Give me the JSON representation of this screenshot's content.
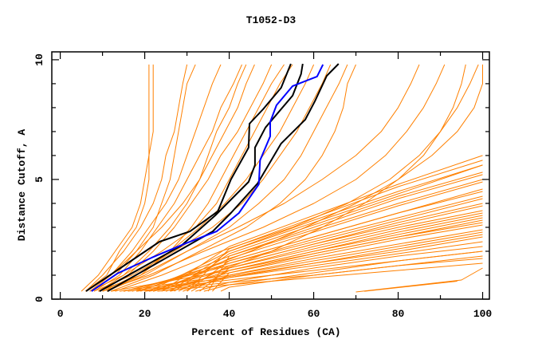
{
  "chart_data": {
    "type": "line",
    "title": "T1052-D3",
    "xlabel": "Percent of Residues (CA)",
    "ylabel": "Distance Cutoff, A",
    "xlim": [
      -2,
      101.6
    ],
    "ylim": [
      0,
      10.33
    ],
    "xticks": [
      0,
      20,
      40,
      60,
      80,
      100
    ],
    "xticks_minor": [
      10,
      30,
      50,
      70,
      90
    ],
    "yticks": [
      0,
      5,
      10
    ],
    "yticks_minor": [
      1,
      2,
      3,
      4,
      6,
      7,
      8,
      9
    ],
    "grid": false,
    "colors": {
      "models": "#ff8000",
      "highlight": "#0000ff",
      "reference": "#000000"
    },
    "orange_upper_y": [
      0.33,
      1,
      2,
      3,
      4,
      5,
      6,
      7,
      8,
      9,
      9.8
    ],
    "orange_upper": [
      [
        5,
        9,
        13,
        17,
        19,
        20,
        21,
        22,
        22,
        22,
        22
      ],
      [
        6,
        10,
        15,
        19,
        22,
        24,
        25,
        27,
        28,
        29,
        30
      ],
      [
        7,
        12,
        17,
        21,
        25,
        28,
        30,
        32,
        34,
        36,
        38
      ],
      [
        8,
        14,
        19,
        23,
        27,
        30,
        33,
        36,
        38,
        41,
        43
      ],
      [
        6,
        12,
        18,
        24,
        29,
        33,
        36,
        39,
        42,
        44,
        46
      ],
      [
        9,
        16,
        22,
        27,
        31,
        35,
        38,
        42,
        45,
        48,
        50
      ],
      [
        7,
        15,
        24,
        32,
        37,
        40,
        43,
        46,
        49,
        52,
        55
      ],
      [
        10,
        18,
        26,
        33,
        39,
        44,
        48,
        52,
        55,
        58,
        60
      ],
      [
        8,
        17,
        27,
        36,
        43,
        48,
        52,
        56,
        59,
        62,
        64
      ],
      [
        11,
        20,
        30,
        40,
        47,
        53,
        57,
        60,
        63,
        66,
        68
      ],
      [
        12,
        22,
        33,
        44,
        52,
        58,
        62,
        65,
        67,
        68,
        70
      ],
      [
        9,
        19,
        30,
        42,
        53,
        62,
        70,
        76,
        80,
        83,
        85
      ],
      [
        10,
        21,
        34,
        48,
        60,
        70,
        77,
        82,
        86,
        89,
        91
      ],
      [
        13,
        24,
        38,
        55,
        68,
        78,
        85,
        90,
        93,
        95,
        96
      ],
      [
        20,
        35,
        50,
        62,
        72,
        80,
        86,
        90,
        94,
        97,
        99
      ],
      [
        15,
        30,
        45,
        58,
        70,
        80,
        88,
        94,
        98,
        100,
        100
      ],
      [
        6,
        11,
        14,
        18,
        20,
        21,
        21,
        21,
        21,
        21,
        21
      ],
      [
        7,
        13,
        18,
        22,
        24,
        26,
        27,
        28,
        29,
        30,
        32
      ],
      [
        9,
        15,
        21,
        26,
        30,
        33,
        35,
        37,
        40,
        42,
        44
      ],
      [
        11,
        19,
        26,
        31,
        35,
        38,
        41,
        44,
        47,
        50,
        53
      ]
    ],
    "orange_lower_x": [
      40,
      60,
      80,
      100
    ],
    "orange_lower": [
      {
        "x0": 12,
        "y": [
          1.2,
          1.9,
          2.6,
          3.2
        ]
      },
      {
        "x0": 14,
        "y": [
          1.0,
          1.6,
          2.2,
          2.8
        ]
      },
      {
        "x0": 15,
        "y": [
          1.4,
          2.3,
          3.2,
          4.0
        ]
      },
      {
        "x0": 16,
        "y": [
          0.9,
          1.4,
          1.9,
          2.4
        ]
      },
      {
        "x0": 17,
        "y": [
          1.6,
          2.6,
          3.6,
          4.5
        ]
      },
      {
        "x0": 18,
        "y": [
          0.8,
          1.2,
          1.6,
          2.0
        ]
      },
      {
        "x0": 19,
        "y": [
          1.8,
          2.9,
          4.0,
          5.0
        ]
      },
      {
        "x0": 20,
        "y": [
          0.7,
          1.0,
          1.4,
          1.7
        ]
      },
      {
        "x0": 20,
        "y": [
          1.3,
          2.1,
          2.9,
          3.6
        ]
      },
      {
        "x0": 21,
        "y": [
          2.0,
          3.2,
          4.4,
          5.6
        ]
      },
      {
        "x0": 22,
        "y": [
          1.1,
          1.8,
          2.5,
          3.1
        ]
      },
      {
        "x0": 22,
        "y": [
          1.5,
          2.5,
          3.4,
          4.3
        ]
      },
      {
        "x0": 23,
        "y": [
          0.6,
          0.9,
          1.2,
          1.5
        ]
      },
      {
        "x0": 24,
        "y": [
          1.7,
          2.8,
          3.9,
          4.9
        ]
      },
      {
        "x0": 24,
        "y": [
          2.2,
          3.5,
          4.8,
          6.0
        ]
      },
      {
        "x0": 25,
        "y": [
          1.2,
          2.0,
          2.7,
          3.4
        ]
      },
      {
        "x0": 26,
        "y": [
          0.9,
          1.5,
          2.0,
          2.6
        ]
      },
      {
        "x0": 27,
        "y": [
          1.9,
          3.1,
          4.3,
          5.3
        ]
      },
      {
        "x0": 28,
        "y": [
          1.4,
          2.3,
          3.1,
          3.9
        ]
      },
      {
        "x0": 29,
        "y": [
          1.0,
          1.7,
          2.3,
          2.9
        ]
      },
      {
        "x0": 30,
        "y": [
          2.1,
          3.4,
          4.7,
          5.8
        ]
      },
      {
        "x0": 30,
        "y": [
          1.6,
          2.6,
          3.6,
          4.6
        ]
      },
      {
        "x0": 32,
        "y": [
          0.7,
          1.3,
          1.8,
          2.2
        ]
      },
      {
        "x0": 33,
        "y": [
          1.3,
          2.2,
          3.0,
          3.7
        ]
      },
      {
        "x0": 35,
        "y": [
          1.8,
          3.0,
          4.2,
          5.2
        ]
      },
      {
        "x0": 36,
        "y": [
          1.1,
          1.9,
          2.6,
          3.3
        ]
      },
      {
        "x0": 38,
        "y": [
          0.5,
          1.0,
          1.4,
          1.8
        ]
      },
      {
        "x0": 18,
        "y": [
          1.5,
          2.4,
          3.3,
          4.2
        ]
      },
      {
        "x0": 21,
        "y": [
          0.95,
          1.5,
          2.1,
          2.7
        ]
      },
      {
        "x0": 26,
        "y": [
          2.0,
          3.3,
          4.5,
          5.6
        ]
      },
      {
        "x0": 31,
        "y": [
          1.2,
          2.0,
          2.8,
          3.5
        ]
      },
      {
        "x0": 34,
        "y": [
          0.6,
          1.1,
          1.6,
          2.0
        ]
      }
    ],
    "orange_misc": [
      {
        "x": [
          70,
          95,
          100
        ],
        "y": [
          0.3,
          0.8,
          1.3
        ]
      },
      {
        "x": [
          72,
          94
        ],
        "y": [
          0.33,
          0.75
        ]
      }
    ],
    "blue_series": {
      "x": [
        7.4,
        13.5,
        21.6,
        29.7,
        37,
        42.3,
        47,
        47.3,
        49.7,
        49.7,
        51.2,
        55,
        60.8,
        62.2
      ],
      "y": [
        0.33,
        1.07,
        1.73,
        2.33,
        2.83,
        3.6,
        4.8,
        5.8,
        6.8,
        7.4,
        8.1,
        8.9,
        9.3,
        9.8
      ]
    },
    "black_series": [
      {
        "x": [
          6.1,
          23.5,
          30.7,
          37.3,
          40.4,
          44.6,
          44.8,
          48,
          52.3,
          54.6
        ],
        "y": [
          0.33,
          2.4,
          2.83,
          3.67,
          5,
          6.33,
          7.33,
          7.93,
          8.83,
          9.83
        ]
      },
      {
        "x": [
          9.3,
          28.6,
          36.7,
          44.6,
          46.1,
          46.1,
          48.6,
          55,
          57,
          57.4
        ],
        "y": [
          0.33,
          2.23,
          3.5,
          4.9,
          5.6,
          6.33,
          7.17,
          8.5,
          9.4,
          9.83
        ]
      },
      {
        "x": [
          11.2,
          36.1,
          40.4,
          46.7,
          52.3,
          58,
          60.3,
          63.1,
          65.9
        ],
        "y": [
          0.33,
          2.83,
          3.6,
          4.83,
          6.5,
          7.5,
          8.27,
          9.33,
          9.83
        ]
      }
    ]
  }
}
